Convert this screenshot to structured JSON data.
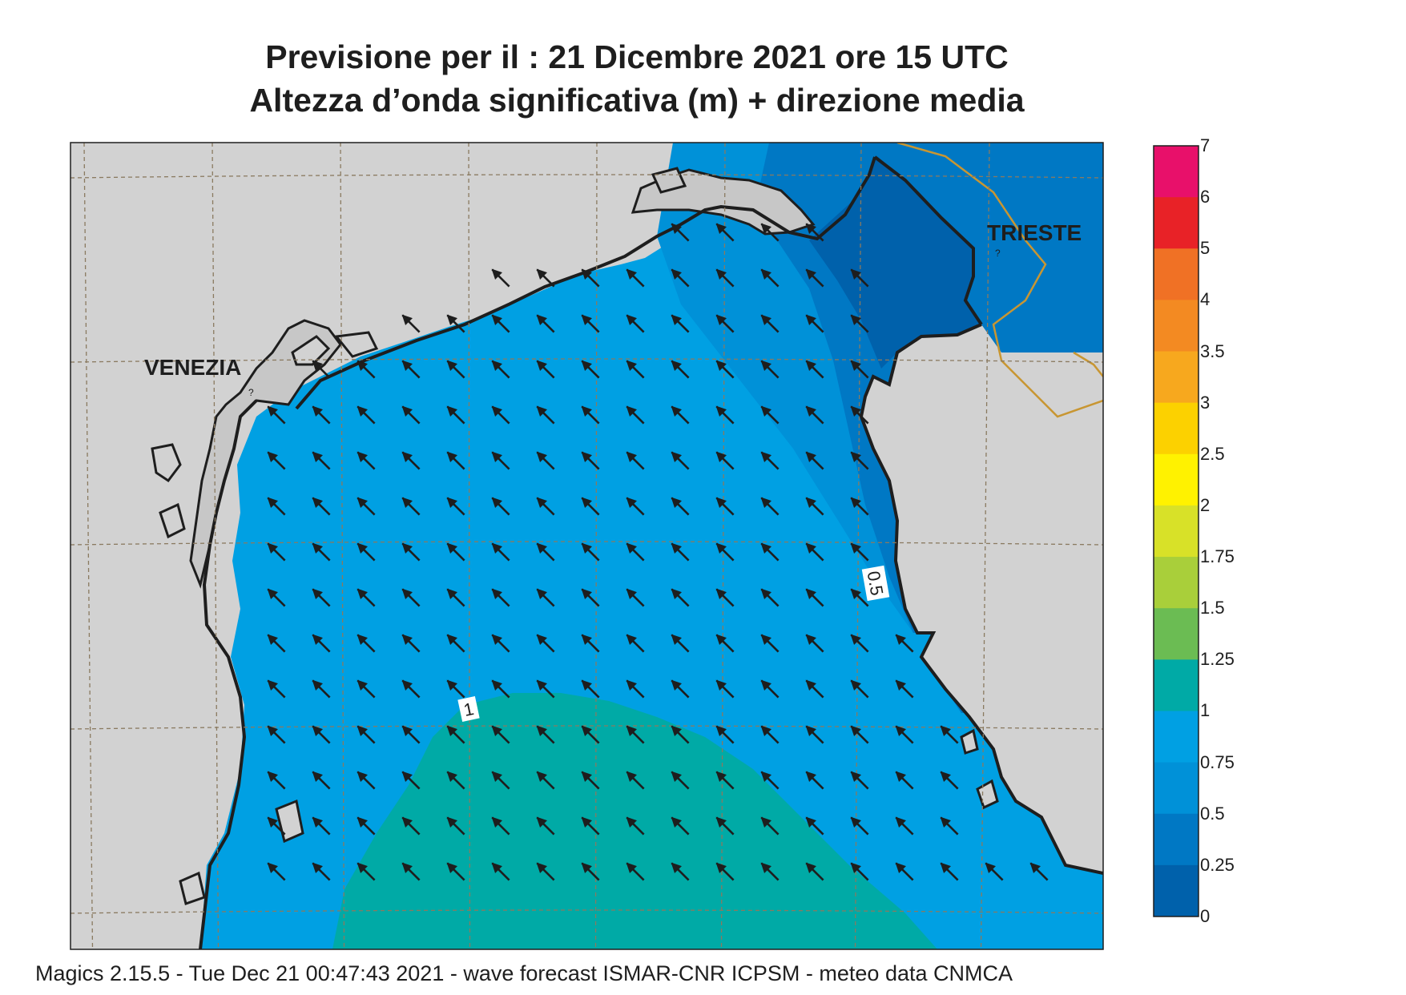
{
  "title": {
    "line1": "Previsione per il  :  21 Dicembre  2021   ore 15 UTC",
    "line2": "Altezza d’onda significativa (m) + direzione media"
  },
  "labels": {
    "venezia": "VENEZIA",
    "trieste": "TRIESTE",
    "contour_05": "0.5",
    "contour_1": "1"
  },
  "legend": {
    "ticks": [
      "7",
      "6",
      "5",
      "4",
      "3.5",
      "3",
      "2.5",
      "2",
      "1.75",
      "1.5",
      "1.25",
      "1",
      "0.75",
      "0.5",
      "0.25",
      "0"
    ],
    "colors": [
      "#e8106a",
      "#e82227",
      "#f07125",
      "#f38a22",
      "#f7a81e",
      "#fcd100",
      "#fff200",
      "#d8e128",
      "#a9cf3a",
      "#6bbc53",
      "#00aaa6",
      "#00a0e3",
      "#0091d8",
      "#0078c4",
      "#0061ab"
    ]
  },
  "colors": {
    "land": "#d2d2d2",
    "sea_1_125": "#00aaa6",
    "sea_075_1": "#00a0e3",
    "sea_05_075": "#0091d8",
    "sea_025_05": "#0078c4",
    "sea_0_025": "#0061ab",
    "border": "#c89632"
  },
  "footer": "Magics 2.15.5 - Tue Dec 21 00:47:43 2021 - wave forecast  ISMAR-CNR  ICPSM - meteo data   CNMCA"
}
